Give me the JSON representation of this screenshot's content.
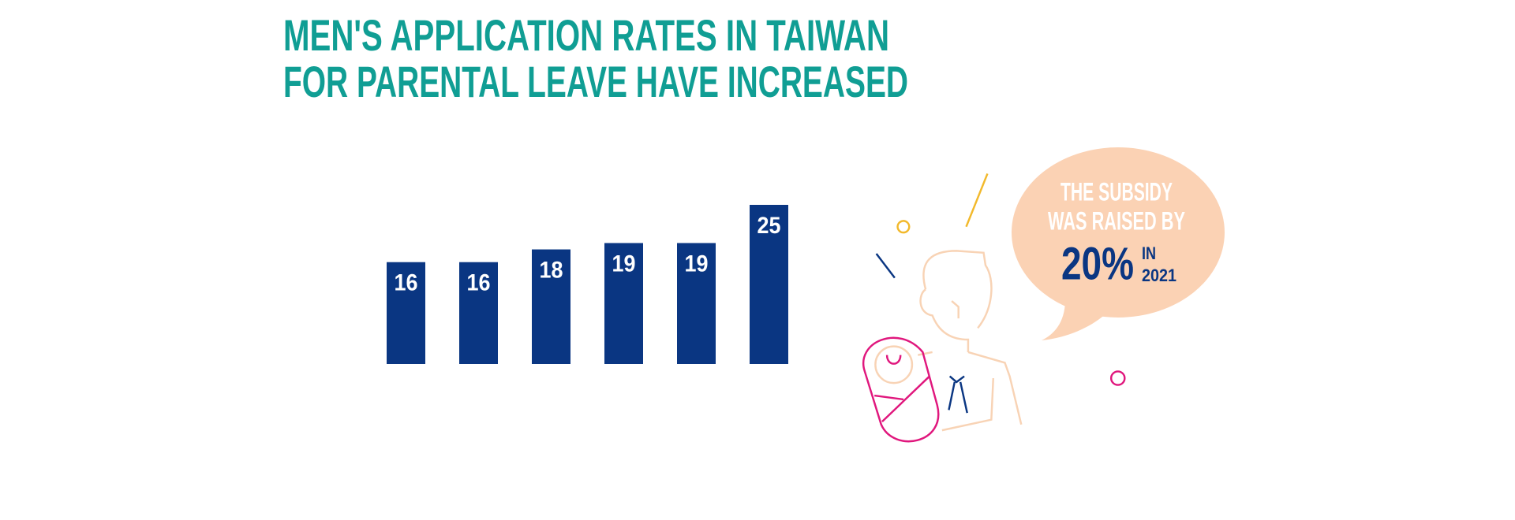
{
  "chart_data": {
    "type": "bar",
    "title_lines": [
      "MEN'S APPLICATION RATES IN TAIWAN",
      "FOR PARENTAL LEAVE HAVE INCREASED"
    ],
    "values": [
      16,
      16,
      18,
      19,
      19,
      25
    ],
    "color": "#0a3682",
    "ylim": [
      0,
      25
    ],
    "annotation": {
      "lines": [
        "THE SUBSIDY",
        "WAS RAISED BY"
      ],
      "highlight": "20%",
      "small_lines": [
        "IN",
        "2021"
      ]
    }
  }
}
